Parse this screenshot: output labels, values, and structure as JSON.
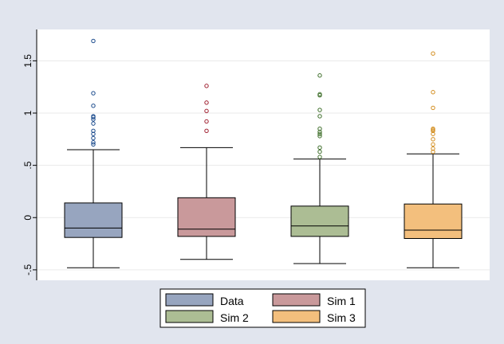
{
  "chart_data": {
    "type": "box",
    "title": "",
    "xlabel": "",
    "ylabel": "",
    "ylim": [
      -0.6,
      1.8
    ],
    "y_ticks": [
      -0.5,
      0,
      0.5,
      1,
      1.5
    ],
    "y_tick_labels": [
      "-.5",
      "0",
      ".5",
      "1",
      "1.5"
    ],
    "grid": true,
    "legend_position": "bottom",
    "series": [
      {
        "name": "Data",
        "color": "#97a5bf",
        "outlier_color": "#1a4a8c",
        "whisker_low": -0.48,
        "q1": -0.19,
        "median": -0.1,
        "q3": 0.14,
        "whisker_high": 0.65,
        "outliers": [
          0.7,
          0.72,
          0.76,
          0.8,
          0.83,
          0.9,
          0.94,
          0.96,
          0.97,
          1.07,
          1.19,
          1.69
        ]
      },
      {
        "name": "Sim 1",
        "color": "#c9999b",
        "outlier_color": "#a02030",
        "whisker_low": -0.4,
        "q1": -0.18,
        "median": -0.11,
        "q3": 0.19,
        "whisker_high": 0.67,
        "outliers": [
          0.83,
          0.92,
          1.02,
          1.1,
          1.26
        ]
      },
      {
        "name": "Sim 2",
        "color": "#acbd94",
        "outlier_color": "#3e6e2a",
        "whisker_low": -0.44,
        "q1": -0.18,
        "median": -0.08,
        "q3": 0.11,
        "whisker_high": 0.56,
        "outliers": [
          0.58,
          0.63,
          0.67,
          0.78,
          0.8,
          0.82,
          0.85,
          0.97,
          1.03,
          1.17,
          1.18,
          1.36
        ]
      },
      {
        "name": "Sim 3",
        "color": "#f3bf7d",
        "outlier_color": "#d38e20",
        "whisker_low": -0.48,
        "q1": -0.2,
        "median": -0.12,
        "q3": 0.13,
        "whisker_high": 0.61,
        "outliers": [
          0.63,
          0.66,
          0.7,
          0.75,
          0.8,
          0.83,
          0.84,
          0.85,
          1.05,
          1.2,
          1.57
        ]
      }
    ]
  }
}
